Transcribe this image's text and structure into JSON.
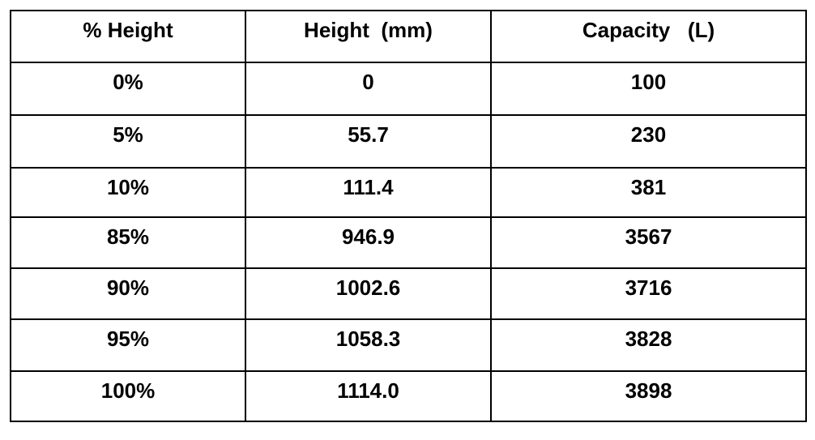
{
  "table": {
    "headers": [
      "% Height",
      "Height  (mm)",
      "Capacity   (L)"
    ],
    "rows": [
      [
        "0%",
        "0",
        "100"
      ],
      [
        "5%",
        "55.7",
        "230"
      ],
      [
        "10%",
        "111.4",
        "381"
      ],
      [
        "85%",
        "946.9",
        "3567"
      ],
      [
        "90%",
        "1002.6",
        "3716"
      ],
      [
        "95%",
        "1058.3",
        "3828"
      ],
      [
        "100%",
        "1114.0",
        "3898"
      ]
    ]
  }
}
